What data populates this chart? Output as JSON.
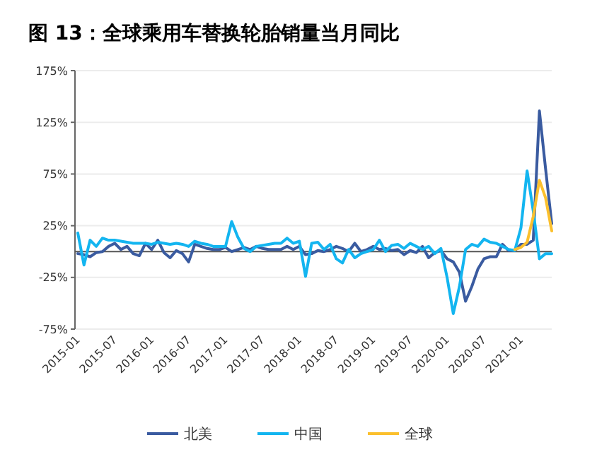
{
  "chart_data": {
    "type": "line",
    "title": "图 13：全球乘用车替换轮胎销量当月同比",
    "categories": [
      "2015-01",
      null,
      null,
      null,
      null,
      null,
      "2015-07",
      null,
      null,
      null,
      null,
      null,
      "2016-01",
      null,
      null,
      null,
      null,
      null,
      "2016-07",
      null,
      null,
      null,
      null,
      null,
      "2017-01",
      null,
      null,
      null,
      null,
      null,
      "2017-07",
      null,
      null,
      null,
      null,
      null,
      "2018-01",
      null,
      null,
      null,
      null,
      null,
      "2018-07",
      null,
      null,
      null,
      null,
      null,
      "2019-01",
      null,
      null,
      null,
      null,
      null,
      "2019-07",
      null,
      null,
      null,
      null,
      null,
      "2020-01",
      null,
      null,
      null,
      null,
      null,
      "2020-07",
      null,
      null,
      null,
      null,
      null,
      "2021-01",
      null,
      null,
      null,
      null,
      null
    ],
    "series": [
      {
        "name": "北美",
        "color": "#3a5ba0",
        "values": [
          -2,
          -3,
          -5,
          -1,
          0,
          5,
          8,
          2,
          5,
          -2,
          -4,
          8,
          2,
          11,
          -1,
          -6,
          1,
          -2,
          -10,
          7,
          5,
          3,
          2,
          2,
          4,
          0,
          2,
          4,
          2,
          5,
          3,
          2,
          2,
          2,
          5,
          2,
          5,
          -3,
          -2,
          1,
          0,
          2,
          5,
          3,
          0,
          8,
          0,
          2,
          5,
          2,
          3,
          1,
          2,
          -3,
          1,
          -1,
          5,
          -6,
          -1,
          1,
          -7,
          -10,
          -20,
          -48,
          -34,
          -17,
          -7,
          -5,
          -5,
          7,
          1,
          1,
          7,
          7,
          11,
          136,
          80,
          27
        ]
      },
      {
        "name": "中国",
        "color": "#13b5f0",
        "values": [
          18,
          -13,
          11,
          5,
          13,
          11,
          11,
          10,
          9,
          8,
          8,
          8,
          7,
          9,
          8,
          7,
          8,
          7,
          5,
          10,
          8,
          7,
          5,
          5,
          5,
          29,
          14,
          3,
          0,
          5,
          6,
          7,
          8,
          8,
          13,
          8,
          10,
          -24,
          8,
          9,
          2,
          7,
          -7,
          -11,
          2,
          -6,
          -2,
          0,
          2,
          11,
          0,
          6,
          7,
          3,
          8,
          5,
          2,
          5,
          -2,
          3,
          -25,
          -60,
          -34,
          2,
          7,
          5,
          12,
          9,
          8,
          5,
          2,
          1,
          23,
          78,
          39,
          -7,
          -2,
          -2
        ]
      },
      {
        "name": "全球",
        "color": "#fbc02d",
        "values": [
          null,
          null,
          null,
          null,
          null,
          null,
          null,
          null,
          null,
          null,
          null,
          null,
          null,
          null,
          null,
          null,
          null,
          null,
          null,
          null,
          null,
          null,
          null,
          null,
          null,
          null,
          null,
          null,
          null,
          null,
          null,
          null,
          null,
          null,
          null,
          null,
          null,
          null,
          null,
          null,
          null,
          null,
          null,
          null,
          null,
          null,
          null,
          null,
          null,
          null,
          null,
          null,
          null,
          null,
          null,
          null,
          null,
          null,
          null,
          null,
          null,
          null,
          null,
          null,
          null,
          null,
          null,
          null,
          null,
          null,
          null,
          2,
          4,
          9,
          34,
          69,
          52,
          20
        ]
      }
    ],
    "ylim": [
      -75,
      175
    ],
    "yticks": [
      {
        "value": -75,
        "label": "-75%"
      },
      {
        "value": -25,
        "label": "-25%"
      },
      {
        "value": 25,
        "label": "25%"
      },
      {
        "value": 75,
        "label": "75%"
      },
      {
        "value": 125,
        "label": "125%"
      },
      {
        "value": 175,
        "label": "175%"
      }
    ],
    "ref_lines": [
      {
        "axis": "y",
        "value": 0,
        "color": "#555555"
      }
    ],
    "grid": "y",
    "legend": "bottom",
    "marker": "none",
    "line_style": "solid"
  }
}
